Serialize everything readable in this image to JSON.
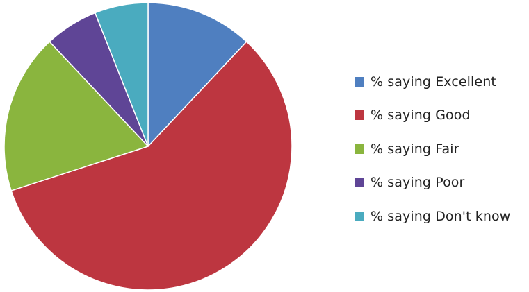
{
  "chart_data": {
    "type": "pie",
    "title": "",
    "start_angle_deg": 0,
    "direction": "clockwise",
    "legend_position": "right",
    "slices": [
      {
        "label": "% saying Excellent",
        "value": 12,
        "color": "#4f7fc0"
      },
      {
        "label": "% saying Good",
        "value": 58,
        "color": "#bd3640"
      },
      {
        "label": "% saying Fair",
        "value": 18,
        "color": "#8ab53e"
      },
      {
        "label": "% saying Poor",
        "value": 6,
        "color": "#5f4596"
      },
      {
        "label": "% saying Don't know",
        "value": 6,
        "color": "#4aabbf"
      }
    ]
  }
}
